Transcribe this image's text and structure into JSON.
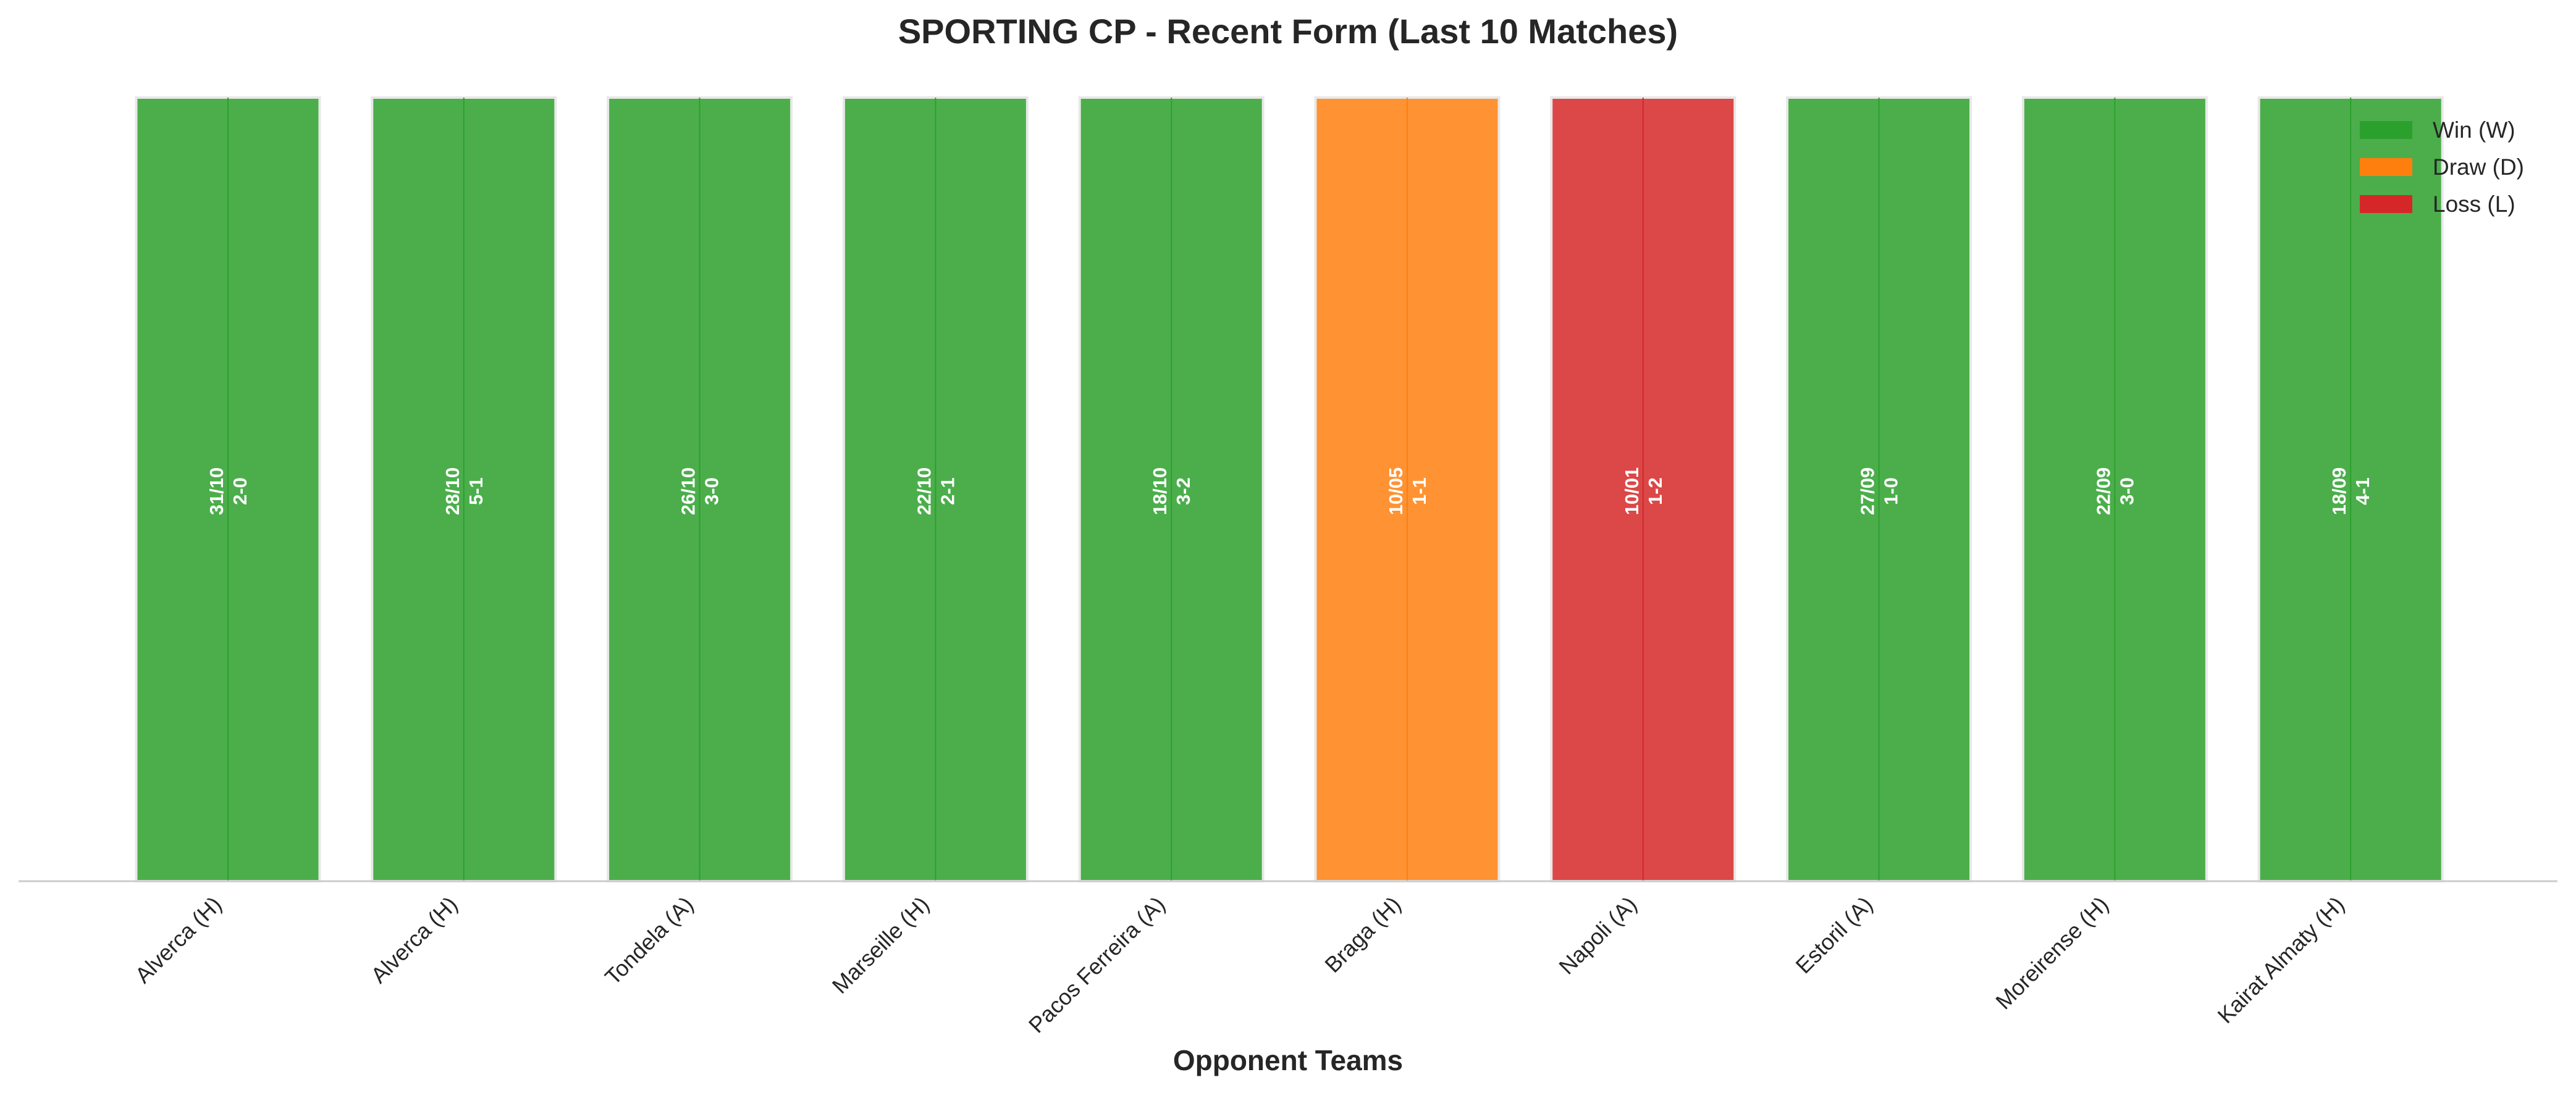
{
  "chart_data": {
    "type": "bar",
    "title": "SPORTING CP - Recent Form (Last 10 Matches)",
    "xlabel": "Opponent Teams",
    "ylabel": "",
    "ylim": [
      0,
      1
    ],
    "grid": false,
    "legend_position": "top-right",
    "categories": [
      "Alverca (H)",
      "Alverca (H)",
      "Tondela (A)",
      "Marseille (H)",
      "Pacos Ferreira (A)",
      "Braga (H)",
      "Napoli (A)",
      "Estoril (A)",
      "Moreirense (H)",
      "Kairat Almaty (H)"
    ],
    "values": [
      1,
      1,
      1,
      1,
      1,
      1,
      1,
      1,
      1,
      1
    ],
    "results": [
      "W",
      "W",
      "W",
      "W",
      "W",
      "D",
      "L",
      "W",
      "W",
      "W"
    ],
    "dates": [
      "31/10",
      "28/10",
      "26/10",
      "22/10",
      "18/10",
      "10/05",
      "10/01",
      "27/09",
      "22/09",
      "18/09"
    ],
    "scores": [
      "2-0",
      "5-1",
      "3-0",
      "2-1",
      "3-2",
      "1-1",
      "1-2",
      "1-0",
      "3-0",
      "4-1"
    ],
    "legend": [
      {
        "result": "W",
        "label": "Win (W)"
      },
      {
        "result": "D",
        "label": "Draw (D)"
      },
      {
        "result": "L",
        "label": "Loss (L)"
      }
    ],
    "colors": {
      "W": "#2ca02c",
      "D": "#ff7f0e",
      "L": "#d62728"
    }
  }
}
